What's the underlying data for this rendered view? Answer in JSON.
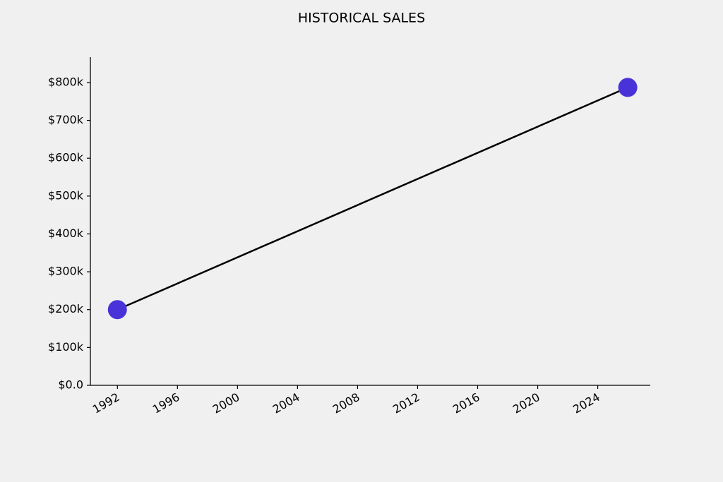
{
  "chart_data": {
    "type": "line",
    "title": "HISTORICAL SALES",
    "x": [
      1992,
      2026
    ],
    "values": [
      200000,
      787000
    ],
    "line_color": "#000000",
    "marker_color": "#4a32d9",
    "xlim": [
      1990.2,
      2027.5
    ],
    "xticks": [
      1992,
      1996,
      2000,
      2004,
      2008,
      2012,
      2016,
      2020,
      2024
    ],
    "ylim": [
      0,
      867000
    ],
    "yticks": [
      {
        "value": 0,
        "label": "$0.0"
      },
      {
        "value": 100000,
        "label": "$100k"
      },
      {
        "value": 200000,
        "label": "$200k"
      },
      {
        "value": 300000,
        "label": "$300k"
      },
      {
        "value": 400000,
        "label": "$400k"
      },
      {
        "value": 500000,
        "label": "$500k"
      },
      {
        "value": 600000,
        "label": "$600k"
      },
      {
        "value": 700000,
        "label": "$700k"
      },
      {
        "value": 800000,
        "label": "$800k"
      }
    ],
    "grid": false
  }
}
